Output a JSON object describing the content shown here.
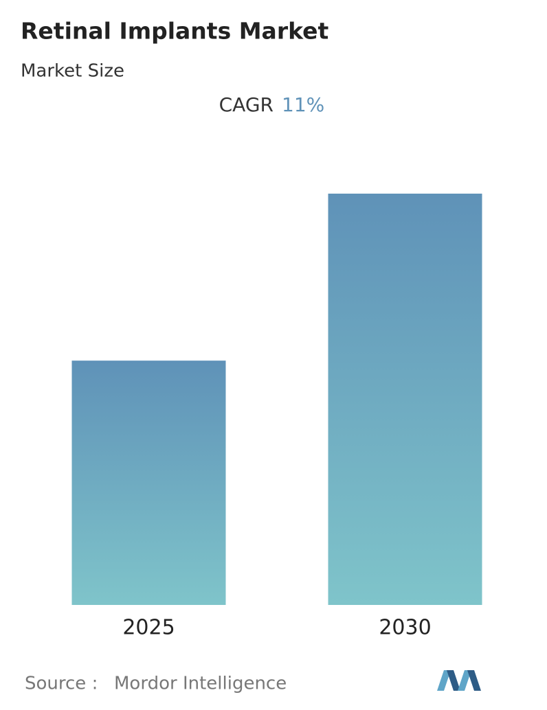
{
  "chart_data": {
    "type": "bar",
    "title": "Retinal Implants Market",
    "subtitle": "Market Size",
    "cagr_label": "CAGR",
    "cagr_value": "11%",
    "categories": [
      "2025",
      "2030"
    ],
    "values": [
      59.4,
      100
    ],
    "ylim": [
      0,
      100
    ],
    "source_label": "Source :",
    "source": "Mordor Intelligence"
  }
}
